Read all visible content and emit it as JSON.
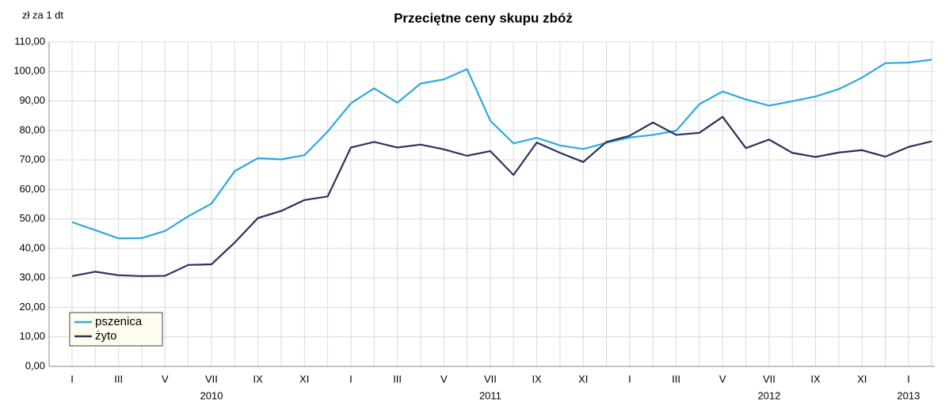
{
  "chart_data": {
    "type": "line",
    "title": "Przeciętne ceny skupu zbóż",
    "y_label": "zł za 1 dt",
    "categories": [
      "I",
      null,
      "III",
      null,
      "V",
      null,
      "VII",
      null,
      "IX",
      null,
      "XI",
      null,
      "I",
      null,
      "III",
      null,
      "V",
      null,
      "VII",
      null,
      "IX",
      null,
      "XI",
      null,
      "I",
      null,
      "III",
      null,
      "V",
      null,
      "VII",
      null,
      "IX",
      null,
      "XI",
      null,
      "I",
      null
    ],
    "x_groups": [
      "2010",
      "2011",
      "2012",
      "2013"
    ],
    "series": [
      {
        "name": "pszenica",
        "color": "#2ea9dc",
        "values": [
          48.9,
          46.2,
          43.4,
          43.5,
          45.9,
          50.9,
          55.2,
          66.2,
          70.6,
          70.2,
          71.6,
          79.6,
          89.2,
          94.3,
          89.4,
          95.9,
          97.3,
          100.8,
          83.3,
          75.6,
          77.5,
          74.9,
          73.7,
          75.8,
          77.6,
          78.5,
          79.9,
          88.9,
          93.2,
          90.5,
          88.4,
          89.9,
          91.5,
          94.0,
          97.9,
          102.8,
          103.0,
          104.0
        ]
      },
      {
        "name": "żyto",
        "color": "#27335e",
        "values": [
          30.6,
          32.1,
          30.9,
          30.6,
          30.7,
          34.4,
          34.6,
          42.0,
          50.3,
          52.7,
          56.4,
          57.6,
          74.2,
          76.1,
          74.2,
          75.2,
          73.6,
          71.4,
          73.0,
          64.9,
          75.9,
          72.4,
          69.3,
          76.1,
          78.2,
          82.7,
          78.5,
          79.2,
          84.6,
          74.0,
          76.9,
          72.4,
          71.0,
          72.5,
          73.3,
          71.1,
          74.4,
          76.3
        ]
      }
    ],
    "ylim": [
      0,
      110
    ],
    "yticks": [
      {
        "value": 0,
        "label": "0,00"
      },
      {
        "value": 10,
        "label": "10,00"
      },
      {
        "value": 20,
        "label": "20,00"
      },
      {
        "value": 30,
        "label": "30,00"
      },
      {
        "value": 40,
        "label": "40,00"
      },
      {
        "value": 50,
        "label": "50,00"
      },
      {
        "value": 60,
        "label": "60,00"
      },
      {
        "value": 70,
        "label": "70,00"
      },
      {
        "value": 80,
        "label": "80,00"
      },
      {
        "value": 90,
        "label": "90,00"
      },
      {
        "value": 100,
        "label": "100,00"
      },
      {
        "value": 110,
        "label": "110,00"
      }
    ],
    "grid": true,
    "legend": "lower-left"
  }
}
